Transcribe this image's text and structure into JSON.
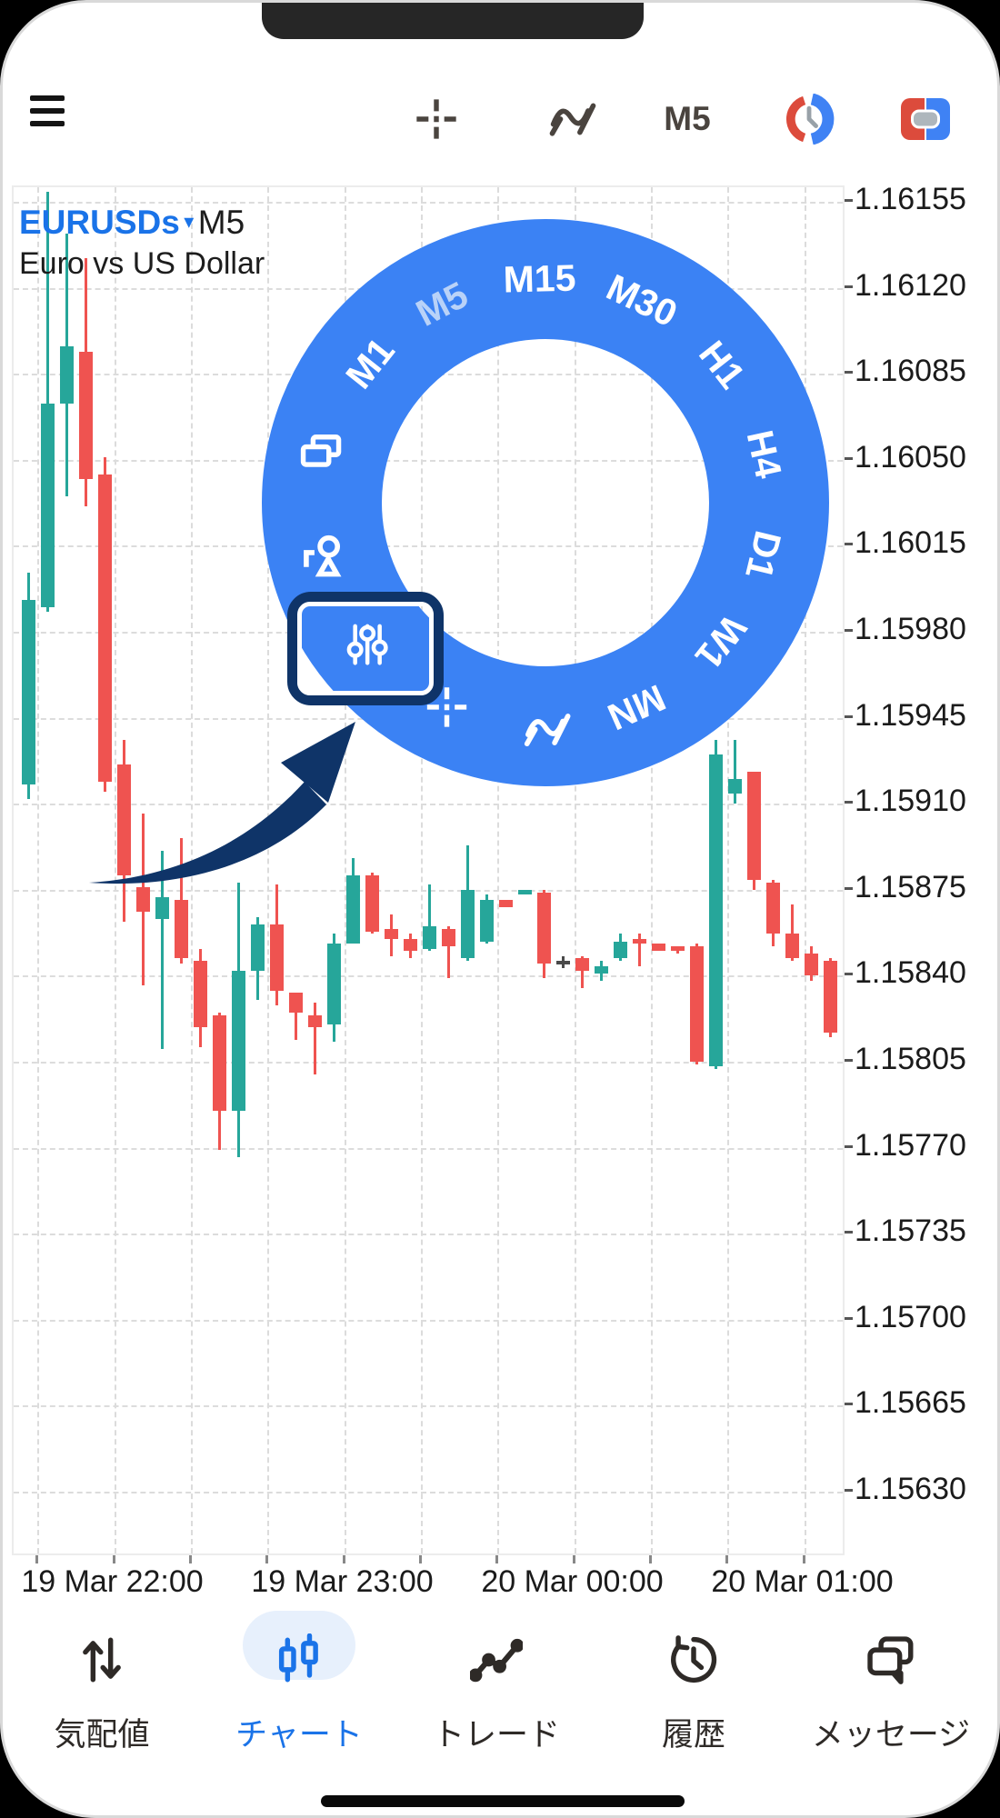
{
  "toolbar": {
    "timeframe_button": "M5",
    "icons": [
      "menu-icon",
      "crosshair-icon",
      "indicators-icon",
      "session-clock-icon",
      "trade-toggle-icon"
    ]
  },
  "chart": {
    "header": {
      "symbol": "EURUSDs",
      "dropdown_arrow": "▾",
      "timeframe": "M5",
      "description": "Euro vs US Dollar"
    }
  },
  "chart_data": {
    "type": "candlestick",
    "symbol": "EURUSDs",
    "timeframe": "M5",
    "title": "EURUSDs M5 — Euro vs US Dollar",
    "y_axis_labels": [
      "1.16155",
      "1.16120",
      "1.16085",
      "1.16050",
      "1.16015",
      "1.15980",
      "1.15945",
      "1.15910",
      "1.15875",
      "1.15840",
      "1.15805",
      "1.15770",
      "1.15735",
      "1.15700",
      "1.15665",
      "1.15630"
    ],
    "x_axis_labels": [
      "19 Mar 22:00",
      "19 Mar 23:00",
      "20 Mar 00:00",
      "20 Mar 01:00"
    ],
    "y_axis": {
      "max_label": 1.16155,
      "min_label": 1.1563,
      "label_step": 0.00035
    },
    "grid": "dashed",
    "colors": {
      "up": "#26a69a",
      "down": "#ef5350",
      "doji": "#4a4a4a"
    },
    "ohlc": [
      [
        1.15918,
        1.16004,
        1.15912,
        1.15993
      ],
      [
        1.1599,
        1.16159,
        1.15988,
        1.16073
      ],
      [
        1.16073,
        1.16142,
        1.16035,
        1.16096
      ],
      [
        1.16094,
        1.16132,
        1.16031,
        1.16042
      ],
      [
        1.16044,
        1.16051,
        1.15915,
        1.15919
      ],
      [
        1.15926,
        1.15936,
        1.15862,
        1.15881
      ],
      [
        1.15876,
        1.15906,
        1.15836,
        1.15866
      ],
      [
        1.15863,
        1.15891,
        1.1581,
        1.15872
      ],
      [
        1.15871,
        1.15896,
        1.15845,
        1.15847
      ],
      [
        1.15846,
        1.15851,
        1.15811,
        1.15819
      ],
      [
        1.15824,
        1.15825,
        1.15769,
        1.15785
      ],
      [
        1.15785,
        1.15878,
        1.15766,
        1.15842
      ],
      [
        1.15842,
        1.15864,
        1.1583,
        1.15861
      ],
      [
        1.15861,
        1.15877,
        1.15828,
        1.15834
      ],
      [
        1.15833,
        1.15833,
        1.15814,
        1.15825
      ],
      [
        1.15824,
        1.15829,
        1.158,
        1.15819
      ],
      [
        1.1582,
        1.15857,
        1.15813,
        1.15853
      ],
      [
        1.15853,
        1.15888,
        1.15853,
        1.15881
      ],
      [
        1.15881,
        1.15882,
        1.15857,
        1.15858
      ],
      [
        1.15859,
        1.15865,
        1.15848,
        1.15855
      ],
      [
        1.15855,
        1.15857,
        1.15847,
        1.1585
      ],
      [
        1.15851,
        1.15877,
        1.1585,
        1.1586
      ],
      [
        1.15859,
        1.1586,
        1.15839,
        1.15852
      ],
      [
        1.15847,
        1.15893,
        1.15846,
        1.15875
      ],
      [
        1.15854,
        1.15873,
        1.15853,
        1.15871
      ],
      [
        1.15871,
        1.15871,
        1.15868,
        1.15868
      ],
      [
        1.15873,
        1.15875,
        1.15873,
        1.15875
      ],
      [
        1.15874,
        1.15875,
        1.15839,
        1.15845
      ],
      [
        1.15846,
        1.15848,
        1.15843,
        1.15846
      ],
      [
        1.15847,
        1.15848,
        1.15835,
        1.15842
      ],
      [
        1.15841,
        1.15846,
        1.15838,
        1.15844
      ],
      [
        1.15847,
        1.15857,
        1.15846,
        1.15854
      ],
      [
        1.15855,
        1.15857,
        1.15844,
        1.15853
      ],
      [
        1.15853,
        1.15853,
        1.1585,
        1.1585
      ],
      [
        1.15852,
        1.15852,
        1.15849,
        1.1585
      ],
      [
        1.15852,
        1.15853,
        1.15804,
        1.15805
      ],
      [
        1.15803,
        1.15936,
        1.15802,
        1.1593
      ],
      [
        1.15914,
        1.15936,
        1.1591,
        1.1592
      ],
      [
        1.15923,
        1.15923,
        1.15875,
        1.15879
      ],
      [
        1.15878,
        1.15879,
        1.15852,
        1.15857
      ],
      [
        1.15857,
        1.15869,
        1.15846,
        1.15847
      ],
      [
        1.15849,
        1.15852,
        1.15838,
        1.1584
      ],
      [
        1.15846,
        1.15847,
        1.15815,
        1.15817
      ]
    ],
    "doji_indices": [
      28
    ]
  },
  "radial_menu": {
    "accent_color": "#3b82f4",
    "active_color": "#b9d2f8",
    "highlight_color": "#0f3468",
    "timeframes": [
      {
        "label": "M1",
        "active": false
      },
      {
        "label": "M5",
        "active": true
      },
      {
        "label": "M15",
        "active": false
      },
      {
        "label": "M30",
        "active": false
      },
      {
        "label": "H1",
        "active": false
      },
      {
        "label": "H4",
        "active": false
      },
      {
        "label": "D1",
        "active": false
      },
      {
        "label": "W1",
        "active": false
      },
      {
        "label": "MN",
        "active": false
      }
    ],
    "tools": [
      "windows-icon",
      "objects-icon",
      "settings-sliders-icon",
      "crosshair-icon",
      "indicators-icon"
    ],
    "highlighted_tool": "settings-sliders-icon"
  },
  "bottom_nav": {
    "items": [
      {
        "label": "気配値",
        "name": "quotes",
        "active": false
      },
      {
        "label": "チャート",
        "name": "charts",
        "active": true
      },
      {
        "label": "トレード",
        "name": "trade",
        "active": false
      },
      {
        "label": "履歴",
        "name": "history",
        "active": false
      },
      {
        "label": "メッセージ",
        "name": "messages",
        "active": false
      }
    ]
  }
}
